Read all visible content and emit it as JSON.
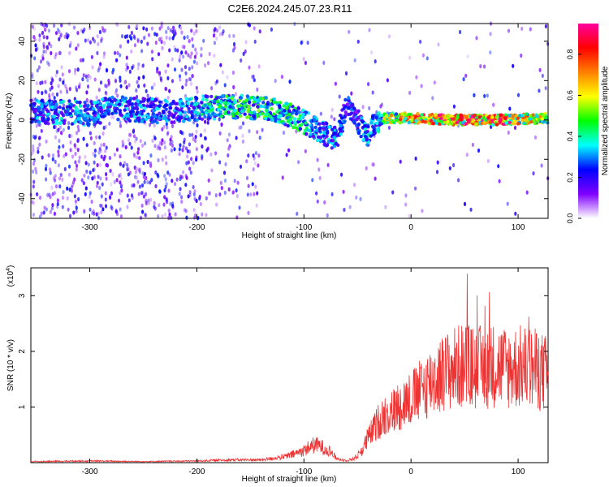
{
  "title": "C2E6.2024.245.07.23.R11",
  "chart_data": [
    {
      "type": "heatmap",
      "xlabel": "Height of straight line (km)",
      "ylabel": "Frequency (Hz)",
      "xlim": [
        -355,
        128
      ],
      "ylim": [
        -50,
        49
      ],
      "xticks": [
        -300,
        -200,
        -100,
        0,
        100
      ],
      "yticks": [
        -40,
        -20,
        0,
        20,
        40
      ],
      "grid": false,
      "colorbar": {
        "label": "Normalized spectral amplitude",
        "range": [
          0,
          0.95
        ],
        "ticks": [
          "0.0",
          "0.2",
          "0.4",
          "0.6",
          "0.8"
        ],
        "colors": [
          "#ffffff",
          "#8000ff",
          "#0000ff",
          "#00ffff",
          "#00ff00",
          "#ffff00",
          "#ff8000",
          "#ff0000",
          "#ff00a0"
        ]
      },
      "ridge": {
        "x": [
          -345,
          -320,
          -300,
          -280,
          -250,
          -220,
          -200,
          -170,
          -140,
          -120,
          -100,
          -85,
          -70,
          -60,
          -50,
          -40,
          -35,
          -25,
          0,
          40,
          80,
          128
        ],
        "y": [
          4,
          4,
          3,
          6,
          5,
          4,
          6,
          7,
          6,
          4,
          -1,
          -6,
          -10,
          7,
          0,
          -8,
          -2,
          1,
          1,
          0,
          0,
          1
        ],
        "amp": [
          0.3,
          0.35,
          0.3,
          0.35,
          0.3,
          0.3,
          0.35,
          0.45,
          0.45,
          0.45,
          0.4,
          0.3,
          0.35,
          0.25,
          0.3,
          0.35,
          0.3,
          0.55,
          0.75,
          0.8,
          0.85,
          0.6
        ]
      }
    },
    {
      "type": "line",
      "xlabel": "Height of straight line (km)",
      "ylabel": "SNR (10 * v/v)",
      "yscale_label": "(x10",
      "yscale_exp": "4",
      "xlim": [
        -355,
        128
      ],
      "ylim": [
        0,
        3.5
      ],
      "xticks": [
        -300,
        -200,
        -100,
        0,
        100
      ],
      "yticks": [
        1,
        2,
        3
      ],
      "color": "#ee3333",
      "grid": false,
      "series": [
        {
          "x": [
            -355,
            -300,
            -250,
            -200,
            -170,
            -140,
            -120,
            -110,
            -100,
            -95,
            -90,
            -85,
            -80,
            -75,
            -70,
            -65,
            -60,
            -55,
            -50,
            -45,
            -40,
            -35,
            -30,
            -25,
            -20,
            -15,
            -10,
            -5,
            0,
            10,
            20,
            30,
            40,
            50,
            60,
            70,
            80,
            90,
            100,
            110,
            120,
            125,
            128
          ],
          "y": [
            0.02,
            0.03,
            0.02,
            0.03,
            0.05,
            0.05,
            0.1,
            0.15,
            0.22,
            0.28,
            0.32,
            0.3,
            0.25,
            0.2,
            0.08,
            0.05,
            0.04,
            0.06,
            0.12,
            0.25,
            0.45,
            0.6,
            0.75,
            0.85,
            0.9,
            0.95,
            1.05,
            1.1,
            1.15,
            1.3,
            1.5,
            1.6,
            1.7,
            1.75,
            1.7,
            1.72,
            1.75,
            1.7,
            1.72,
            1.7,
            1.65,
            1.6,
            1.6
          ]
        }
      ]
    }
  ]
}
